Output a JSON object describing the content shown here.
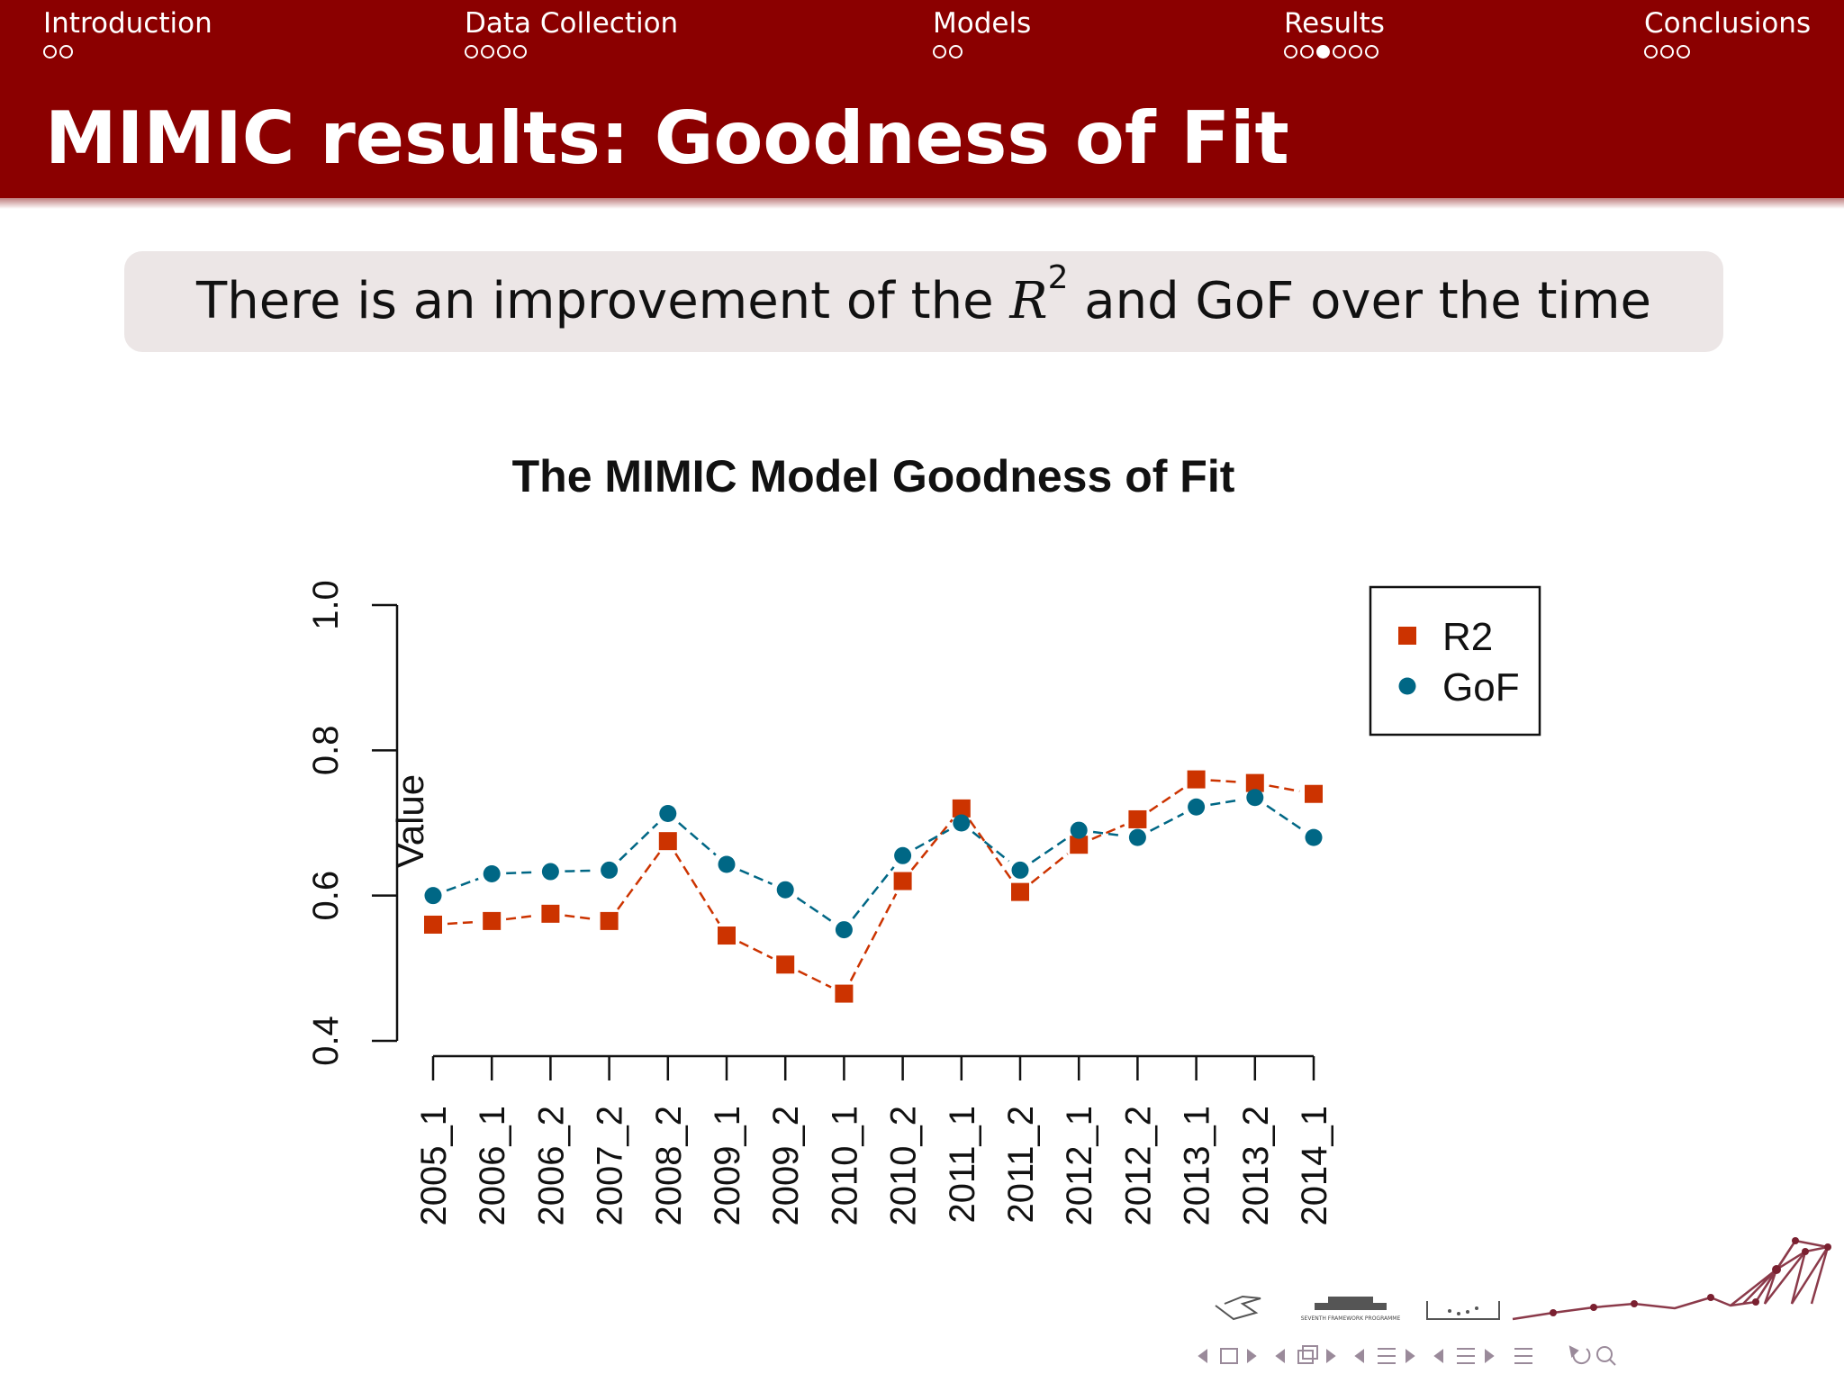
{
  "nav": {
    "sections": [
      {
        "label": "Introduction",
        "dots": 2,
        "current": -1
      },
      {
        "label": "Data Collection",
        "dots": 4,
        "current": -1
      },
      {
        "label": "Models",
        "dots": 2,
        "current": -1
      },
      {
        "label": "Results",
        "dots": 6,
        "current": 2
      },
      {
        "label": "Conclusions",
        "dots": 3,
        "current": -1
      }
    ]
  },
  "slide": {
    "title": "MIMIC results: Goodness of Fit",
    "callout": {
      "before": "There is an improvement of the ",
      "var": "R",
      "sup": "2",
      "after": " and GoF over the time"
    }
  },
  "chart_data": {
    "type": "line",
    "title": "The MIMIC Model Goodness of Fit",
    "xlabel": "",
    "ylabel": "Value",
    "ylim": [
      0.4,
      1.0
    ],
    "yticks": [
      "0.4",
      "0.6",
      "0.8",
      "1.0"
    ],
    "categories": [
      "2005_1",
      "2006_1",
      "2006_2",
      "2007_2",
      "2008_2",
      "2009_1",
      "2009_2",
      "2010_1",
      "2010_2",
      "2011_1",
      "2011_2",
      "2012_1",
      "2012_2",
      "2013_1",
      "2013_2",
      "2014_1"
    ],
    "series": [
      {
        "name": "R2",
        "color": "#cc3300",
        "marker": "square",
        "values": [
          0.56,
          0.565,
          0.575,
          0.565,
          0.675,
          0.545,
          0.505,
          0.465,
          0.62,
          0.72,
          0.605,
          0.67,
          0.705,
          0.76,
          0.755,
          0.74
        ]
      },
      {
        "name": "GoF",
        "color": "#006785",
        "marker": "circle",
        "values": [
          0.6,
          0.63,
          0.633,
          0.635,
          0.713,
          0.643,
          0.608,
          0.553,
          0.655,
          0.7,
          0.635,
          0.69,
          0.68,
          0.722,
          0.735,
          0.68
        ]
      }
    ],
    "legend": "top-right",
    "grid": false
  },
  "footer": {
    "logo_text": "SEVENTH FRAMEWORK PROGRAMME",
    "controls": [
      "nav-arrow-left-icon",
      "frame-icon",
      "nav-arrow-right-icon",
      "nav-arrow-left-icon",
      "subsection-icon",
      "nav-arrow-right-icon",
      "nav-arrow-left-icon",
      "section-icon",
      "nav-arrow-right-icon",
      "nav-arrow-left-icon",
      "document-icon",
      "nav-arrow-right-icon",
      "align-icon",
      "back-icon",
      "search-icon"
    ]
  }
}
